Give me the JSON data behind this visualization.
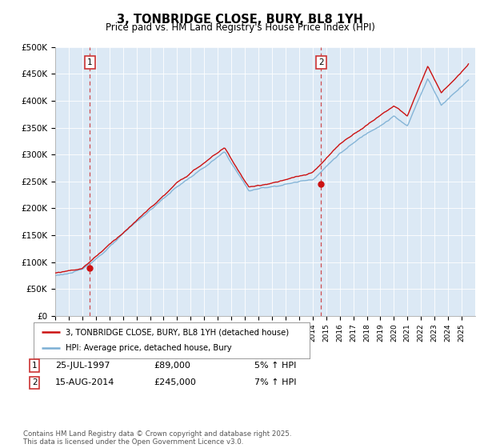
{
  "title": "3, TONBRIDGE CLOSE, BURY, BL8 1YH",
  "subtitle": "Price paid vs. HM Land Registry's House Price Index (HPI)",
  "ylim": [
    0,
    500000
  ],
  "yticks": [
    0,
    50000,
    100000,
    150000,
    200000,
    250000,
    300000,
    350000,
    400000,
    450000,
    500000
  ],
  "ytick_labels": [
    "£0",
    "£50K",
    "£100K",
    "£150K",
    "£200K",
    "£250K",
    "£300K",
    "£350K",
    "£400K",
    "£450K",
    "£500K"
  ],
  "hpi_color": "#7bafd4",
  "price_color": "#cc1111",
  "dashed_color": "#cc3333",
  "chart_bg": "#dce9f5",
  "grid_color": "#ffffff",
  "sale1_date": 1997.56,
  "sale1_price": 89000,
  "sale1_label": "1",
  "sale2_date": 2014.62,
  "sale2_price": 245000,
  "sale2_label": "2",
  "legend_label_price": "3, TONBRIDGE CLOSE, BURY, BL8 1YH (detached house)",
  "legend_label_hpi": "HPI: Average price, detached house, Bury",
  "footer_text": "Contains HM Land Registry data © Crown copyright and database right 2025.\nThis data is licensed under the Open Government Licence v3.0.",
  "xstart": 1995,
  "xend": 2026,
  "ann1_num": "1",
  "ann1_date": "25-JUL-1997",
  "ann1_price": "£89,000",
  "ann1_hpi": "5% ↑ HPI",
  "ann2_num": "2",
  "ann2_date": "15-AUG-2014",
  "ann2_price": "£245,000",
  "ann2_hpi": "7% ↑ HPI"
}
